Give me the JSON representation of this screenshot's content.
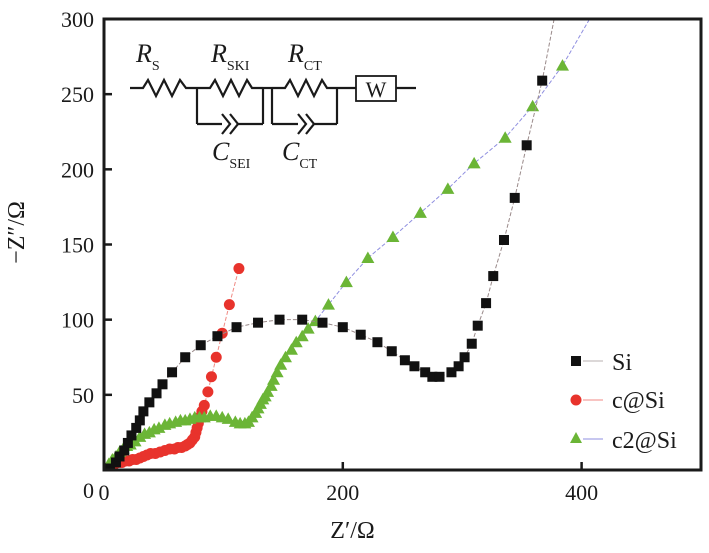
{
  "chart_data": {
    "type": "scatter",
    "title": "",
    "xlabel": "Z′/Ω",
    "ylabel": "−Z″/Ω",
    "xlim": [
      0,
      500
    ],
    "ylim": [
      0,
      300
    ],
    "xticks": [
      0,
      200,
      400
    ],
    "xtick_labels": [
      "0",
      "200",
      "400"
    ],
    "yticks": [
      0,
      50,
      100,
      150,
      200,
      250,
      300
    ],
    "ytick_labels": [
      "0",
      "50",
      "100",
      "150",
      "200",
      "250",
      "300"
    ],
    "grid": false,
    "legend_position": "bottom-right",
    "series": [
      {
        "name": "Si",
        "marker": "square",
        "color": "#111111",
        "line_color": "#9a8a8a",
        "x": [
          5,
          10,
          13,
          17,
          20,
          23,
          27,
          30,
          33,
          38,
          44,
          49,
          57,
          68,
          81,
          95,
          111,
          129,
          147,
          166,
          183,
          200,
          215,
          229,
          241,
          252,
          260,
          269,
          275,
          281,
          291,
          297,
          302,
          308,
          313,
          320,
          326,
          335,
          344,
          354,
          367
        ],
        "y": [
          1,
          5,
          9,
          13,
          18,
          23,
          28,
          33,
          39,
          45,
          51,
          57,
          65,
          75,
          83,
          89,
          95,
          98,
          100,
          100,
          98,
          95,
          90,
          85,
          79,
          73,
          69,
          65,
          62,
          62,
          65,
          69,
          75,
          84,
          96,
          111,
          129,
          153,
          181,
          216,
          259
        ],
        "line_extends_to": [
          377,
          300
        ]
      },
      {
        "name": "c@Si",
        "marker": "circle",
        "color": "#e8332c",
        "line_color": "#f08a84",
        "x": [
          3,
          6,
          9,
          12,
          15,
          18,
          21,
          24,
          27,
          30,
          33,
          36,
          39,
          43,
          47,
          51,
          55,
          59,
          62,
          65,
          68,
          70,
          72,
          74,
          76,
          77,
          78,
          79,
          80,
          82,
          84,
          87,
          90,
          94,
          99,
          105,
          113
        ],
        "y": [
          1,
          3,
          4,
          5,
          5,
          6,
          6,
          7,
          7,
          8,
          9,
          10,
          11,
          11,
          12,
          13,
          14,
          14,
          15,
          15,
          16,
          17,
          18,
          20,
          22,
          25,
          28,
          31,
          35,
          39,
          43,
          52,
          62,
          75,
          91,
          110,
          134
        ]
      },
      {
        "name": "c2@Si",
        "marker": "triangle",
        "color": "#6bb536",
        "line_color": "#8f8fe0",
        "x": [
          1,
          4,
          7,
          10,
          13,
          16,
          19,
          22,
          26,
          30,
          34,
          38,
          42,
          46,
          51,
          55,
          60,
          64,
          68,
          72,
          76,
          80,
          84,
          89,
          94,
          99,
          104,
          110,
          114,
          118,
          121,
          124,
          127,
          129,
          131,
          133,
          135,
          137,
          140,
          142,
          145,
          148,
          152,
          157,
          161,
          166,
          171,
          177,
          188,
          203,
          221,
          242,
          265,
          288,
          310,
          336,
          359,
          384
        ],
        "y": [
          1,
          4,
          7,
          9,
          12,
          14,
          16,
          17,
          19,
          22,
          24,
          25,
          27,
          28,
          30,
          31,
          32,
          33,
          33,
          34,
          35,
          35,
          35,
          36,
          36,
          35,
          34,
          32,
          31,
          31,
          32,
          35,
          38,
          41,
          44,
          47,
          49,
          52,
          56,
          60,
          65,
          70,
          75,
          80,
          85,
          89,
          94,
          99,
          110,
          125,
          141,
          155,
          171,
          187,
          204,
          221,
          242,
          269
        ],
        "line_extends_to": [
          406,
          299
        ]
      }
    ],
    "inset": {
      "type": "equivalent-circuit",
      "elements": [
        {
          "kind": "resistor",
          "label": "R",
          "sub": "S"
        },
        {
          "kind": "resistor-parallel-capacitor",
          "r_label": "R",
          "r_sub": "SKI",
          "c_label": "C",
          "c_sub": "SEI"
        },
        {
          "kind": "resistor-parallel-capacitor",
          "r_label": "R",
          "r_sub": "CT",
          "c_label": "C",
          "c_sub": "CT"
        },
        {
          "kind": "warburg",
          "label": "W"
        }
      ]
    }
  }
}
